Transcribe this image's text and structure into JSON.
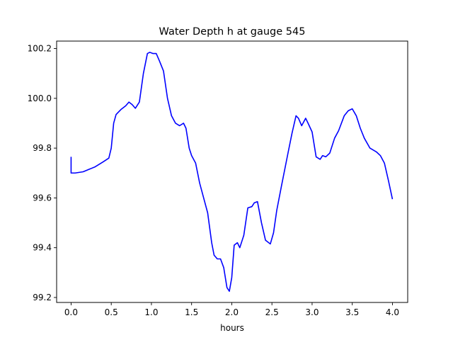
{
  "chart_data": {
    "type": "line",
    "title": "Water Depth h at gauge 545",
    "xlabel": "hours",
    "ylabel": "",
    "xlim": [
      -0.18,
      4.19
    ],
    "ylim": [
      99.18,
      100.23
    ],
    "x_ticks": [
      0.0,
      0.5,
      1.0,
      1.5,
      2.0,
      2.5,
      3.0,
      3.5,
      4.0
    ],
    "x_tick_labels": [
      "0.0",
      "0.5",
      "1.0",
      "1.5",
      "2.0",
      "2.5",
      "3.0",
      "3.5",
      "4.0"
    ],
    "y_ticks": [
      99.2,
      99.4,
      99.6,
      99.8,
      100.0,
      100.2
    ],
    "y_tick_labels": [
      "99.2",
      "99.4",
      "99.6",
      "99.8",
      "100.0",
      "100.2"
    ],
    "grid": false,
    "legend": "none",
    "series": [
      {
        "color": "#0000ff",
        "x": [
          0.0,
          0.0,
          0.05,
          0.15,
          0.3,
          0.4,
          0.47,
          0.5,
          0.53,
          0.56,
          0.62,
          0.68,
          0.72,
          0.76,
          0.8,
          0.85,
          0.9,
          0.95,
          0.98,
          1.02,
          1.06,
          1.1,
          1.15,
          1.2,
          1.25,
          1.3,
          1.35,
          1.4,
          1.43,
          1.47,
          1.5,
          1.55,
          1.6,
          1.7,
          1.75,
          1.78,
          1.82,
          1.86,
          1.9,
          1.94,
          1.97,
          2.0,
          2.03,
          2.07,
          2.1,
          2.15,
          2.2,
          2.25,
          2.28,
          2.32,
          2.37,
          2.42,
          2.48,
          2.52,
          2.56,
          2.62,
          2.7,
          2.75,
          2.8,
          2.83,
          2.87,
          2.92,
          2.95,
          3.0,
          3.05,
          3.1,
          3.13,
          3.17,
          3.22,
          3.28,
          3.33,
          3.4,
          3.45,
          3.5,
          3.55,
          3.6,
          3.65,
          3.72,
          3.8,
          3.85,
          3.9,
          3.95,
          4.0
        ],
        "y": [
          99.765,
          99.7,
          99.7,
          99.705,
          99.725,
          99.745,
          99.76,
          99.8,
          99.9,
          99.935,
          99.955,
          99.97,
          99.985,
          99.975,
          99.96,
          99.985,
          100.1,
          100.18,
          100.185,
          100.18,
          100.18,
          100.15,
          100.11,
          100.0,
          99.93,
          99.9,
          99.89,
          99.9,
          99.88,
          99.8,
          99.77,
          99.74,
          99.66,
          99.54,
          99.42,
          99.37,
          99.355,
          99.355,
          99.32,
          99.24,
          99.225,
          99.28,
          99.41,
          99.42,
          99.4,
          99.45,
          99.56,
          99.565,
          99.58,
          99.585,
          99.5,
          99.43,
          99.415,
          99.46,
          99.55,
          99.65,
          99.78,
          99.86,
          99.93,
          99.92,
          99.89,
          99.92,
          99.9,
          99.865,
          99.765,
          99.755,
          99.77,
          99.765,
          99.78,
          99.84,
          99.87,
          99.93,
          99.95,
          99.958,
          99.93,
          99.88,
          99.84,
          99.8,
          99.785,
          99.77,
          99.74,
          99.67,
          99.595
        ]
      }
    ]
  }
}
